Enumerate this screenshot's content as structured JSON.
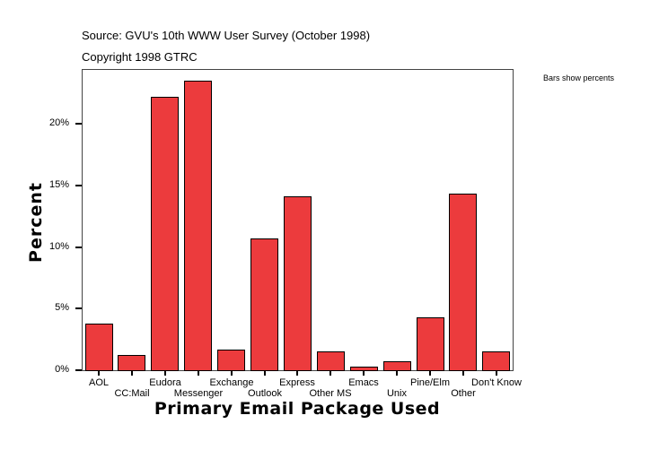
{
  "header": {
    "source": "Source: GVU's 10th WWW User Survey (October 1998)",
    "copyright": "Copyright 1998 GTRC"
  },
  "legend_note": "Bars show percents",
  "axes": {
    "ylabel": "Percent",
    "xlabel": "Primary Email Package Used",
    "yticks": [
      "0%",
      "5%",
      "10%",
      "15%",
      "20%"
    ]
  },
  "style": {
    "bar_color": "#ec3b3d",
    "bar_border": "#000000"
  },
  "chart_data": {
    "type": "bar",
    "title": "",
    "subtitle": "Source: GVU's 10th WWW User Survey (October 1998) / Copyright 1998 GTRC",
    "xlabel": "Primary Email Package Used",
    "ylabel": "Percent",
    "ylim": [
      0,
      24.4
    ],
    "yticks": [
      0,
      5,
      10,
      15,
      20
    ],
    "ytick_labels": [
      "0%",
      "5%",
      "10%",
      "15%",
      "20%"
    ],
    "grid": false,
    "legend": "Bars show percents",
    "legend_position": "top-right outside",
    "categories": [
      "AOL",
      "CC:Mail",
      "Eudora",
      "Messenger",
      "Exchange",
      "Outlook",
      "Express",
      "Other MS",
      "Emacs",
      "Unix",
      "Pine/Elm",
      "Other",
      "Don't Know"
    ],
    "values": [
      3.8,
      1.2,
      22.2,
      23.5,
      1.7,
      10.7,
      14.1,
      1.5,
      0.3,
      0.7,
      4.3,
      14.3,
      1.5
    ]
  }
}
